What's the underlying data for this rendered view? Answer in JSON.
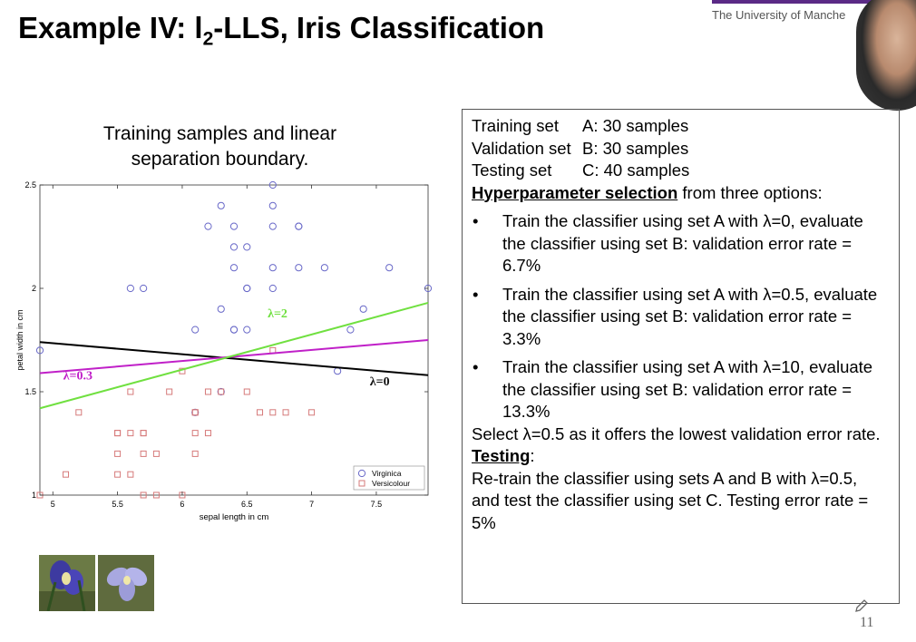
{
  "slide": {
    "title_pre": "Example IV: l",
    "title_sub": "2",
    "title_post": "-LLS, Iris Classification",
    "university": "The University of Manche",
    "page_number": "11"
  },
  "chart": {
    "title_line1": "Training samples and linear",
    "title_line2": "separation boundary.",
    "colors": {
      "virginica": "#6868c8",
      "versicolour": "#d67a7a",
      "lambda0": "#000000",
      "lambda03": "#c020c8",
      "lambda2": "#70e040"
    }
  },
  "chart_data": {
    "type": "scatter",
    "xlabel": "sepal length in cm",
    "ylabel": "petal width in cm",
    "xlim": [
      4.9,
      7.9
    ],
    "ylim": [
      1.0,
      2.5
    ],
    "xticks": [
      "5",
      "5.5",
      "6",
      "6.5",
      "7",
      "7.5"
    ],
    "yticks": [
      "1",
      "1.5",
      "2",
      "2.5"
    ],
    "legend_position": "bottom-right",
    "series": [
      {
        "name": "Virginica",
        "marker": "circle",
        "x": [
          4.9,
          5.6,
          5.7,
          6.1,
          6.1,
          6.2,
          6.3,
          6.3,
          6.3,
          6.4,
          6.4,
          6.4,
          6.4,
          6.4,
          6.5,
          6.5,
          6.5,
          6.5,
          6.7,
          6.7,
          6.7,
          6.7,
          6.7,
          6.9,
          6.9,
          6.9,
          7.1,
          7.2,
          7.3,
          7.4,
          7.6,
          7.9
        ],
        "y": [
          1.7,
          2.0,
          2.0,
          1.8,
          1.4,
          2.3,
          2.4,
          1.9,
          1.5,
          2.3,
          2.2,
          2.1,
          1.8,
          1.8,
          2.2,
          2.0,
          2.0,
          1.8,
          2.5,
          2.4,
          2.3,
          2.1,
          2.0,
          2.3,
          2.3,
          2.1,
          2.1,
          1.6,
          1.8,
          1.9,
          2.1,
          2.0
        ]
      },
      {
        "name": "Versicolour",
        "marker": "square",
        "x": [
          4.9,
          5.1,
          5.2,
          5.5,
          5.5,
          5.5,
          5.5,
          5.6,
          5.6,
          5.6,
          5.7,
          5.7,
          5.7,
          5.7,
          5.8,
          5.8,
          5.9,
          6.0,
          6.0,
          6.1,
          6.1,
          6.1,
          6.1,
          6.2,
          6.2,
          6.3,
          6.5,
          6.6,
          6.7,
          6.7,
          6.8,
          7.0
        ],
        "y": [
          1.0,
          1.1,
          1.4,
          1.3,
          1.3,
          1.2,
          1.1,
          1.5,
          1.3,
          1.1,
          1.3,
          1.2,
          1.3,
          1.0,
          1.2,
          1.0,
          1.5,
          1.6,
          1.0,
          1.4,
          1.4,
          1.3,
          1.2,
          1.5,
          1.3,
          1.5,
          1.5,
          1.4,
          1.4,
          1.7,
          1.4,
          1.4
        ]
      }
    ],
    "boundaries": [
      {
        "label": "λ=0",
        "x": [
          4.9,
          7.9
        ],
        "y": [
          1.74,
          1.58
        ]
      },
      {
        "label": "λ=0.3",
        "x": [
          4.9,
          7.9
        ],
        "y": [
          1.59,
          1.75
        ]
      },
      {
        "label": "λ=2",
        "x": [
          4.9,
          7.9
        ],
        "y": [
          1.42,
          1.93
        ]
      }
    ]
  },
  "panel": {
    "lines": [
      {
        "name": "Training set",
        "value": "A: 30 samples"
      },
      {
        "name": "Validation set",
        "value": "B: 30 samples"
      },
      {
        "name": "Testing set",
        "value": "C: 40 samples"
      }
    ],
    "hp_heading": "Hyperparameter selection",
    "hp_rest": " from three options:",
    "bullet_glyph": "•",
    "bullets": [
      "Train the classifier using set A with λ=0, evaluate the classifier using set B: validation error rate = 6.7%",
      "Train the classifier using set A with λ=0.5, evaluate the classifier using set B: validation error rate = 3.3%",
      "Train the classifier using set A with λ=10, evaluate the classifier using set B: validation error rate = 13.3%"
    ],
    "select_text": "Select λ=0.5 as it offers the lowest validation error rate.",
    "testing_heading": "Testing",
    "testing_colon": ":",
    "testing_text": "Re-train the classifier using sets A and B with λ=0.5, and test the classifier using set C. Testing error rate = 5%"
  },
  "icons": {
    "pen": "pen-icon"
  }
}
